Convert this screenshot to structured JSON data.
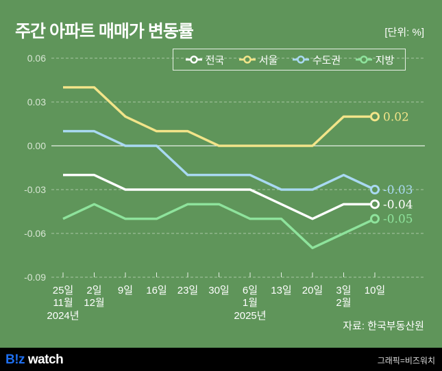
{
  "title": "주간 아파트 매매가 변동률",
  "unit": "[단위: %]",
  "source": "자료: 한국부동산원",
  "footer": {
    "logo_b": "B!z",
    "logo_w": " watch",
    "credit": "그래픽=비즈워치"
  },
  "colors": {
    "national": "#ffffff",
    "seoul": "#f2e489",
    "capital": "#a9d9f2",
    "regional": "#8ee39c"
  },
  "chart_data": {
    "type": "line",
    "title": "주간 아파트 매매가 변동률",
    "ylim": [
      -0.09,
      0.06
    ],
    "yticks": [
      "0.06",
      "0.03",
      "0.00",
      "-0.03",
      "-0.06",
      "-0.09"
    ],
    "ytick_values": [
      0.06,
      0.03,
      0,
      -0.03,
      -0.06,
      -0.09
    ],
    "categories": [
      "25일",
      "2일",
      "9일",
      "16일",
      "23일",
      "30일",
      "6일",
      "13일",
      "20일",
      "3일",
      "10일"
    ],
    "months": [
      "11월",
      "12월",
      "",
      "",
      "",
      "",
      "1월",
      "",
      "",
      "2월",
      ""
    ],
    "years": [
      "2024년",
      "",
      "",
      "",
      "",
      "",
      "2025년",
      "",
      "",
      "",
      ""
    ],
    "legend_position": "top",
    "series": [
      {
        "key": "national",
        "name": "전국",
        "values": [
          -0.02,
          -0.02,
          -0.03,
          -0.03,
          -0.03,
          -0.03,
          -0.03,
          -0.04,
          -0.05,
          -0.04,
          -0.04
        ],
        "end_label": "-0.04"
      },
      {
        "key": "seoul",
        "name": "서울",
        "values": [
          0.04,
          0.04,
          0.02,
          0.01,
          0.01,
          0,
          0,
          0,
          0,
          0.02,
          0.02
        ],
        "end_label": "0.02"
      },
      {
        "key": "capital",
        "name": "수도권",
        "values": [
          0.01,
          0.01,
          0,
          0,
          -0.02,
          -0.02,
          -0.02,
          -0.03,
          -0.03,
          -0.02,
          -0.03
        ],
        "end_label": "-0.03"
      },
      {
        "key": "regional",
        "name": "지방",
        "values": [
          -0.05,
          -0.04,
          -0.05,
          -0.05,
          -0.04,
          -0.04,
          -0.05,
          -0.05,
          -0.07,
          -0.06,
          -0.05
        ],
        "end_label": "-0.05"
      }
    ]
  }
}
